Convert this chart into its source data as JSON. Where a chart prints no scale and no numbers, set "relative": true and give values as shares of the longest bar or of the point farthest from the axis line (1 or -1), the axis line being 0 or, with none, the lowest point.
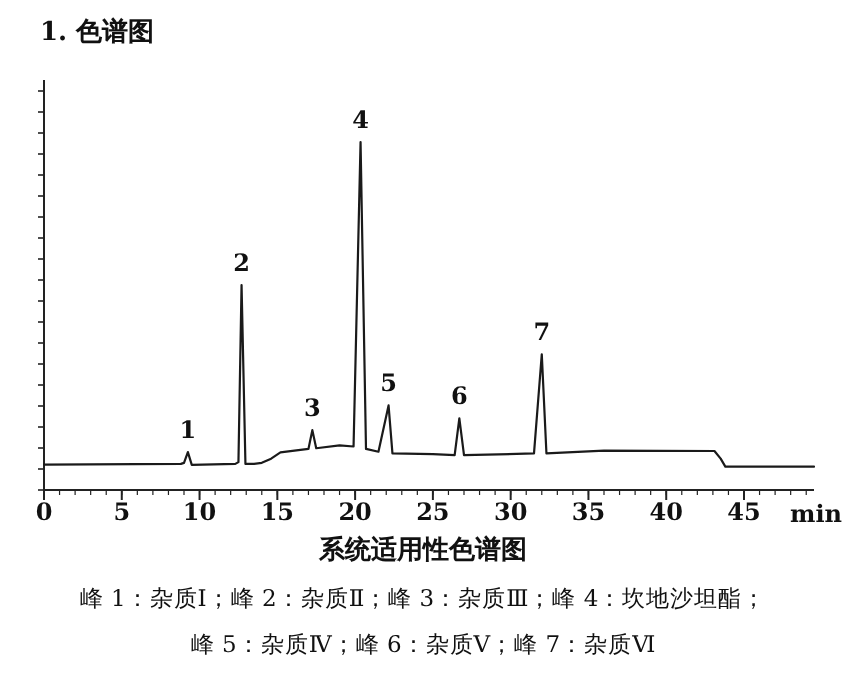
{
  "chart_data": {
    "type": "line",
    "relative": true,
    "title": "1. 色谱图",
    "xlabel": "min",
    "tick_labels": "x",
    "line_style": "solid",
    "xlim": [
      0,
      49.5
    ],
    "xticks": [
      0,
      5,
      10,
      15,
      20,
      25,
      30,
      35,
      40,
      45
    ],
    "x": [
      0,
      8.8,
      9.0,
      9.25,
      9.5,
      12.3,
      12.5,
      12.7,
      12.95,
      13.5,
      14,
      14.6,
      15.2,
      17.0,
      17.25,
      17.5,
      19,
      19.9,
      20.35,
      20.7,
      21.5,
      22.15,
      22.4,
      25,
      26.4,
      26.7,
      27,
      31.5,
      32.0,
      32.3,
      36,
      43.1,
      43.5,
      43.8,
      49.5
    ],
    "series": [
      {
        "color": "#1a1a1a",
        "values": [
          0.073,
          0.075,
          0.078,
          0.109,
          0.072,
          0.075,
          0.08,
          0.589,
          0.075,
          0.075,
          0.078,
          0.09,
          0.108,
          0.118,
          0.172,
          0.12,
          0.128,
          0.125,
          1.0,
          0.118,
          0.11,
          0.243,
          0.105,
          0.103,
          0.1,
          0.206,
          0.1,
          0.105,
          0.39,
          0.105,
          0.113,
          0.112,
          0.09,
          0.067,
          0.067
        ]
      }
    ],
    "annotations": [
      {
        "text": "1",
        "x": 9.25,
        "y": 0.109
      },
      {
        "text": "2",
        "x": 12.7,
        "y": 0.589
      },
      {
        "text": "3",
        "x": 17.25,
        "y": 0.172
      },
      {
        "text": "4",
        "x": 20.35,
        "y": 1.0
      },
      {
        "text": "5",
        "x": 22.15,
        "y": 0.243
      },
      {
        "text": "6",
        "x": 26.7,
        "y": 0.206
      },
      {
        "text": "7",
        "x": 32.0,
        "y": 0.39
      },
      "系统适用性色谱图",
      "峰 1：杂质Ⅰ；峰 2：杂质Ⅱ；峰 3：杂质Ⅲ；峰 4：坎地沙坦酯；",
      "峰 5：杂质Ⅳ；峰 6：杂质Ⅴ；峰 7：杂质Ⅵ"
    ]
  }
}
